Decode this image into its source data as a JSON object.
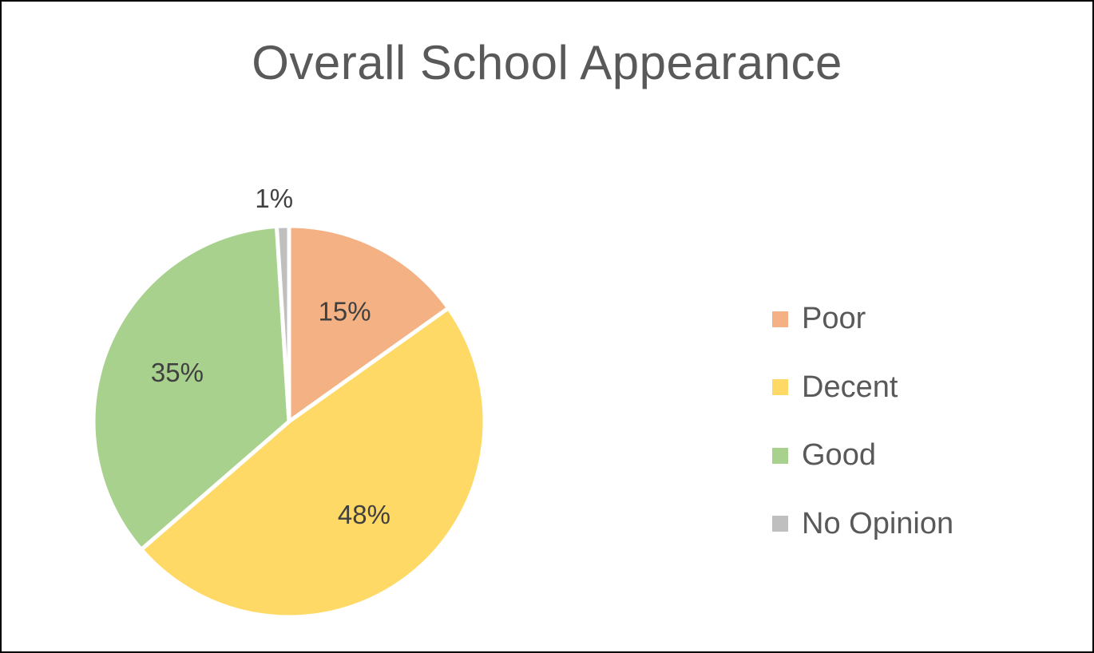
{
  "chart_data": {
    "type": "pie",
    "title": "Overall School Appearance",
    "slices": [
      {
        "label": "Poor",
        "value": 15,
        "display": "15%",
        "color": "#F4B183"
      },
      {
        "label": "Decent",
        "value": 48,
        "display": "48%",
        "color": "#FFD966"
      },
      {
        "label": "Good",
        "value": 35,
        "display": "35%",
        "color": "#A9D18E"
      },
      {
        "label": "No Opinion",
        "value": 1,
        "display": "1%",
        "color": "#BFBFBF"
      }
    ],
    "legend_position": "right",
    "start_angle_deg": 0,
    "direction": "clockwise"
  }
}
